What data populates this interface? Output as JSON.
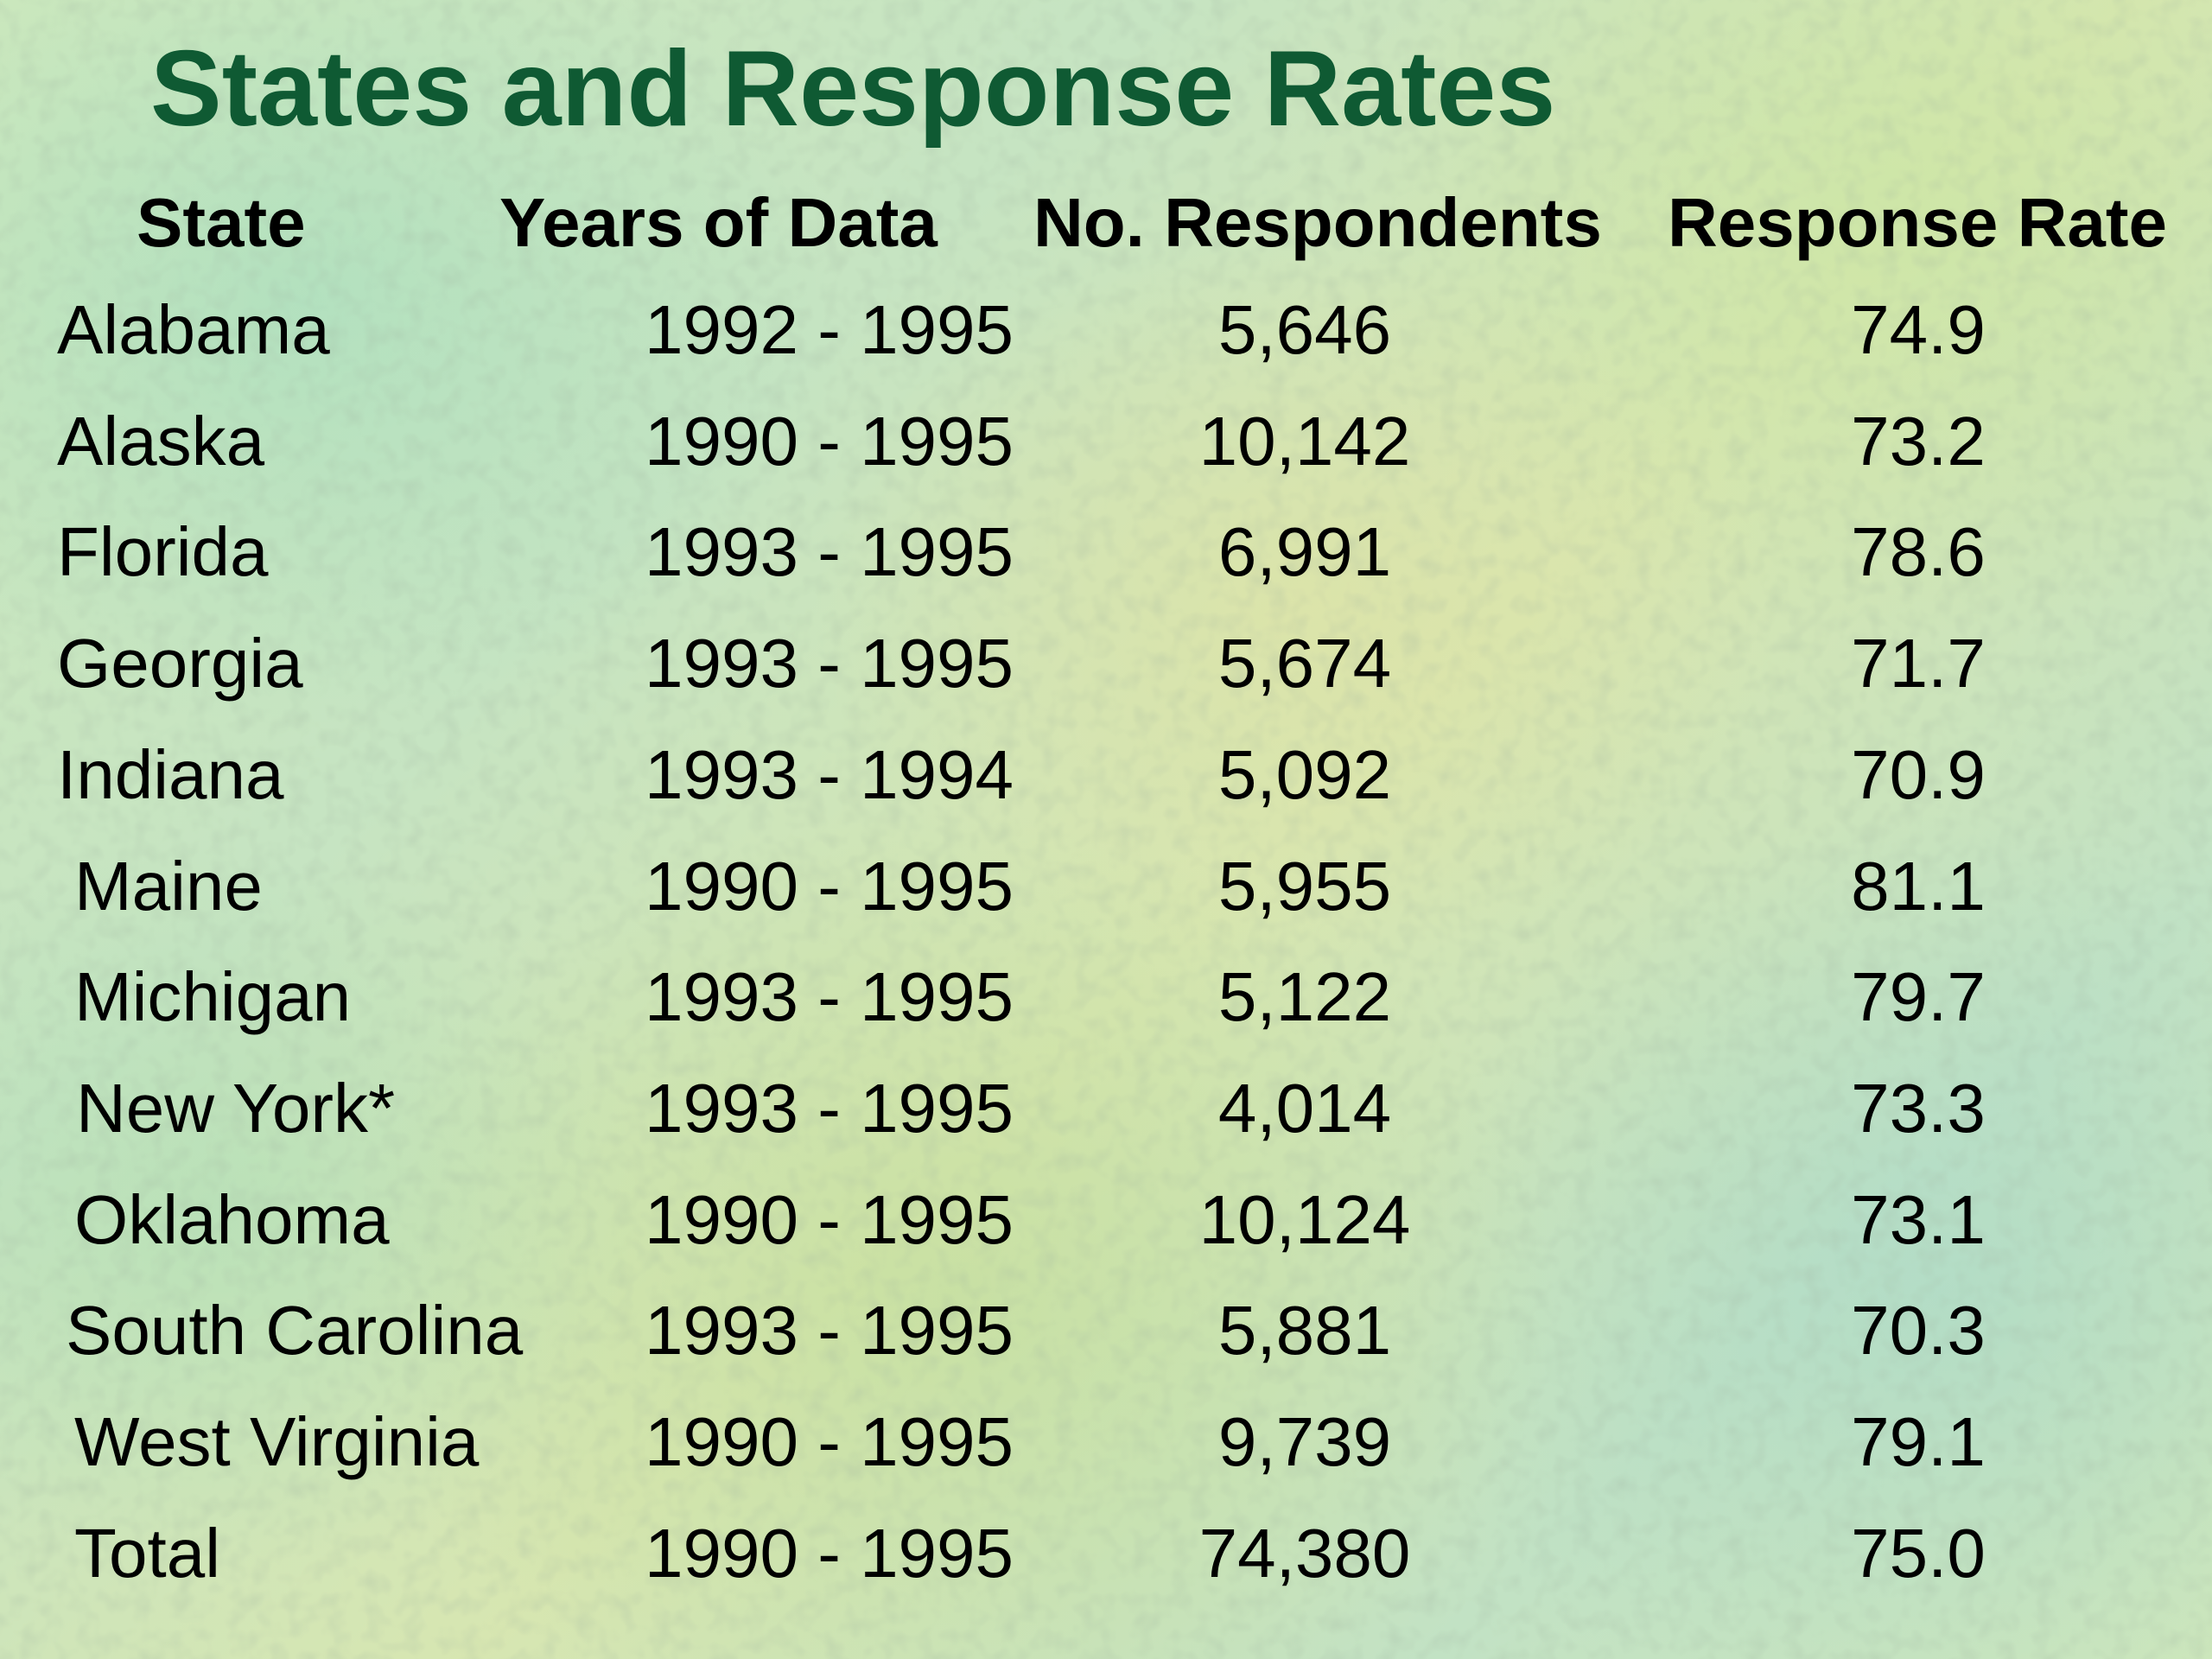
{
  "title": "States and Response Rates",
  "table": {
    "headers": [
      "State",
      "Years of Data",
      "No. Respondents",
      "Response Rate"
    ],
    "rows": [
      {
        "state": "Alabama",
        "years": "1992 - 1995",
        "respondents": "5,646",
        "rate": "74.9"
      },
      {
        "state": "Alaska",
        "years": "1990 - 1995",
        "respondents": "10,142",
        "rate": "73.2"
      },
      {
        "state": "Florida",
        "years": "1993 - 1995",
        "respondents": "6,991",
        "rate": "78.6"
      },
      {
        "state": "Georgia",
        "years": "1993 - 1995",
        "respondents": "5,674",
        "rate": "71.7"
      },
      {
        "state": "Indiana",
        "years": "1993 - 1994",
        "respondents": "5,092",
        "rate": "70.9"
      },
      {
        "state": "Maine",
        "years": "1990 - 1995",
        "respondents": "5,955",
        "rate": "81.1"
      },
      {
        "state": "Michigan",
        "years": "1993 - 1995",
        "respondents": "5,122",
        "rate": "79.7"
      },
      {
        "state": "New York*",
        "years": "1993 - 1995",
        "respondents": "4,014",
        "rate": "73.3"
      },
      {
        "state": "Oklahoma",
        "years": "1990 - 1995",
        "respondents": "10,124",
        "rate": "73.1"
      },
      {
        "state": "South Carolina",
        "years": "1993 - 1995",
        "respondents": "5,881",
        "rate": "70.3"
      },
      {
        "state": "West Virginia",
        "years": "1990 - 1995",
        "respondents": "9,739",
        "rate": "79.1"
      },
      {
        "state": "Total",
        "years": "1990 - 1995",
        "respondents": "74,380",
        "rate": "75.0"
      }
    ]
  },
  "colors": {
    "title": "#0f5a33",
    "text": "#000000",
    "background": "#cde8bd"
  }
}
